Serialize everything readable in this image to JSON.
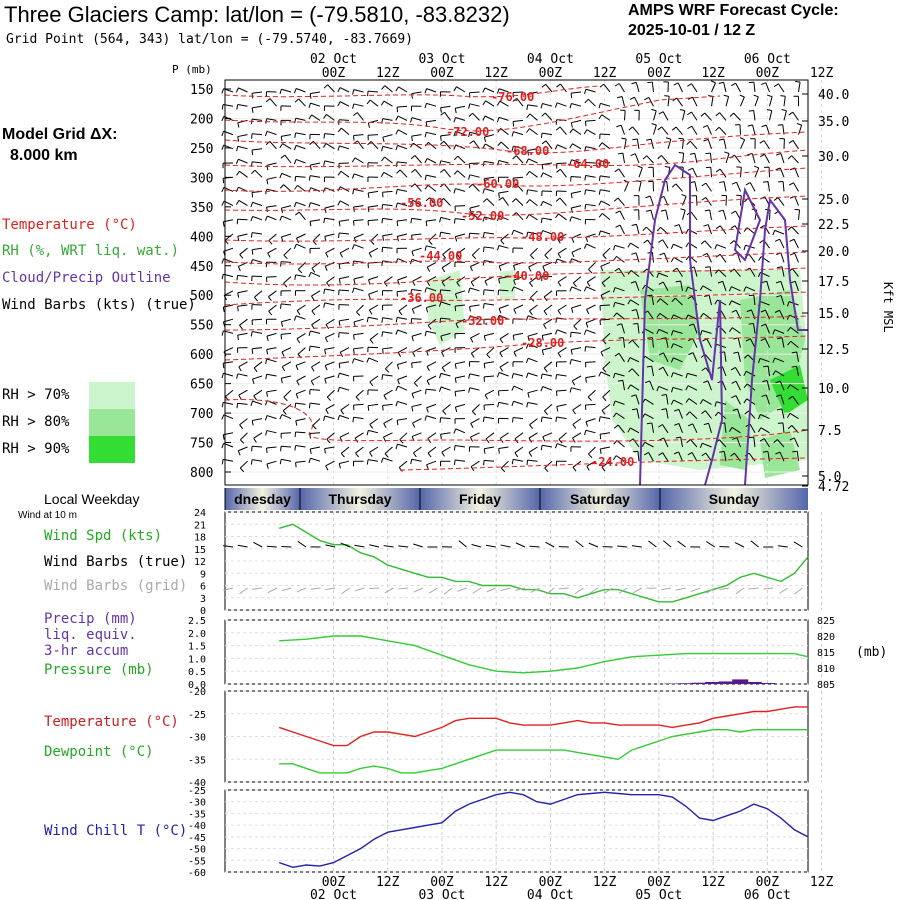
{
  "header": {
    "title": "Three Glaciers Camp:  lat/lon = (-79.5810, -83.8232)",
    "grid_point": "Grid Point (564, 343) lat/lon = (-79.5740, -83.7669)",
    "cycle_label": "AMPS WRF Forecast Cycle:",
    "cycle_value": "2025-10-01 / 12  Z"
  },
  "model_grid": {
    "label": "Model Grid ΔX:",
    "value": "8.000 km"
  },
  "legend": {
    "temperature": "Temperature (°C)",
    "rh": "RH (%, WRT liq. wat.)",
    "cloud": "Cloud/Precip Outline",
    "wind": "Wind Barbs (kts) (true)",
    "rh70": "RH > 70%",
    "rh80": "RH > 80%",
    "rh90": "RH > 90%"
  },
  "colors": {
    "temperature": "#e02020",
    "rh": "#33bb33",
    "cloud": "#6633aa",
    "rh70": "#ccf5cc",
    "rh80": "#99e699",
    "rh90": "#33dd33",
    "wind_chill": "#2222aa",
    "dewpoint": "#33cc33",
    "pressure": "#33cc33",
    "precip": "#551a8b",
    "wind_grid": "#aaaaaa"
  },
  "time_axis": {
    "hour_ticks": [
      "00Z",
      "12Z",
      "00Z",
      "12Z",
      "00Z",
      "12Z",
      "00Z",
      "12Z",
      "00Z",
      "12Z"
    ],
    "date_ticks": [
      "02 Oct",
      "03 Oct",
      "04 Oct",
      "05 Oct",
      "06 Oct"
    ]
  },
  "weekday": {
    "label": "Local Weekday",
    "days": [
      "dnesday",
      "Thursday",
      "Friday",
      "Saturday",
      "Sunday"
    ],
    "wind_note": "Wind at 10 m"
  },
  "cross_section": {
    "p_label": "P (mb)",
    "right_label": "Kft MSL",
    "pressure_ticks": [
      "150",
      "200",
      "250",
      "300",
      "350",
      "400",
      "450",
      "500",
      "550",
      "600",
      "650",
      "700",
      "750",
      "800"
    ],
    "height_ticks": [
      "40.0",
      "35.0",
      "30.0",
      "25.0",
      "22.5",
      "20.0",
      "17.5",
      "15.0",
      "12.5",
      "10.0",
      "7.5",
      "5.0",
      "4.72"
    ],
    "contour_labels": [
      "-76.00",
      "-72.00",
      "-68.00",
      "-64.00",
      "-60.00",
      "-56.00",
      "-52.00",
      "-48.00",
      "-44.00",
      "-40.00",
      "-36.00",
      "-32.00",
      "-28.00",
      "-24.00"
    ]
  },
  "panel_wind": {
    "labels": [
      "Wind Spd (kts)",
      "Wind Barbs (true)",
      "Wind Barbs (grid)"
    ],
    "y_ticks": [
      "24",
      "21",
      "18",
      "15",
      "12",
      "9",
      "6",
      "3",
      "0"
    ]
  },
  "panel_precip": {
    "labels": [
      "Precip (mm)",
      "liq. equiv.",
      "3-hr accum",
      "Pressure (mb)"
    ],
    "left_ticks": [
      "2.5",
      "2.0",
      "1.5",
      "1.0",
      "0.5",
      "0.0"
    ],
    "right_ticks": [
      "825",
      "820",
      "815",
      "810",
      "805"
    ],
    "unit": "(mb)"
  },
  "panel_temp": {
    "labels": [
      "Temperature (°C)",
      "Dewpoint (°C)"
    ],
    "y_ticks": [
      "-20",
      "-25",
      "-30",
      "-35",
      "-40"
    ]
  },
  "panel_chill": {
    "label": "Wind Chill T (°C)",
    "y_ticks": [
      "-25",
      "-30",
      "-35",
      "-40",
      "-45",
      "-50",
      "-55",
      "-60"
    ]
  },
  "chart_data": [
    {
      "type": "line",
      "title": "Wind Spd (kts)",
      "x": [
        0,
        3,
        6,
        9,
        12,
        15,
        18,
        21,
        24,
        27,
        30,
        33,
        36,
        39,
        42,
        45,
        48,
        51,
        54,
        57,
        60,
        63,
        66,
        69,
        72,
        75,
        78,
        81,
        84,
        87,
        90,
        93,
        96,
        99,
        102,
        105,
        108,
        111,
        114,
        117
      ],
      "series": [
        {
          "name": "Wind Spd (kts)",
          "values": [
            20,
            21,
            19,
            17,
            16,
            16,
            14,
            13,
            11,
            10,
            9,
            8,
            8,
            7,
            7,
            6,
            6,
            6,
            5,
            5,
            4,
            4,
            3,
            4,
            5,
            5,
            4,
            3,
            2,
            2,
            3,
            4,
            5,
            6,
            8,
            9,
            8,
            7,
            9,
            13
          ]
        }
      ],
      "ylim": [
        0,
        24
      ]
    },
    {
      "type": "line",
      "title": "Pressure (mb)",
      "x": [
        0,
        6,
        12,
        18,
        24,
        30,
        36,
        42,
        48,
        54,
        60,
        66,
        72,
        78,
        84,
        90,
        96,
        102,
        108,
        114,
        117
      ],
      "series": [
        {
          "name": "Pressure (mb)",
          "values": [
            818.5,
            819,
            820,
            820,
            818.5,
            817,
            814,
            811,
            809,
            808.5,
            809,
            810,
            812,
            813.5,
            814,
            814.5,
            814.5,
            814.5,
            814.5,
            814.5,
            813.5
          ]
        }
      ],
      "ylim": [
        805,
        825
      ]
    },
    {
      "type": "bar",
      "title": "Precip (mm) liq. equiv. 3-hr accum",
      "x": [
        87,
        90,
        93,
        96,
        99,
        102,
        105,
        108
      ],
      "values": [
        0.02,
        0.03,
        0.05,
        0.08,
        0.1,
        0.18,
        0.08,
        0.04
      ],
      "ylim": [
        0,
        2.5
      ]
    },
    {
      "type": "line",
      "x": [
        0,
        3,
        6,
        9,
        12,
        15,
        18,
        21,
        24,
        27,
        30,
        33,
        36,
        39,
        42,
        45,
        48,
        51,
        54,
        57,
        60,
        63,
        66,
        69,
        72,
        75,
        78,
        81,
        84,
        87,
        90,
        93,
        96,
        99,
        102,
        105,
        108,
        111,
        114,
        117
      ],
      "series": [
        {
          "name": "Temperature (°C)",
          "values": [
            -28,
            -29,
            -30,
            -31,
            -32,
            -32,
            -30,
            -29,
            -29,
            -29.5,
            -30,
            -29,
            -28,
            -26.5,
            -26,
            -26,
            -26,
            -27,
            -27.5,
            -27.5,
            -27.5,
            -27,
            -26.5,
            -27,
            -27,
            -27.5,
            -27.5,
            -27.5,
            -27.5,
            -28,
            -27.5,
            -27,
            -26,
            -25.5,
            -25,
            -24.5,
            -24.5,
            -24,
            -23.5,
            -23.5
          ]
        },
        {
          "name": "Dewpoint (°C)",
          "values": [
            -36,
            -36,
            -37,
            -38,
            -38,
            -38,
            -37,
            -36.5,
            -37,
            -38,
            -38,
            -37.5,
            -37,
            -36,
            -35,
            -34,
            -33,
            -33,
            -33,
            -33,
            -33,
            -33,
            -33.5,
            -34,
            -34.5,
            -35,
            -33,
            -32,
            -31,
            -30,
            -29.5,
            -29,
            -28.5,
            -28.5,
            -29,
            -28.5,
            -28.5,
            -28.5,
            -28.5,
            -28.5
          ]
        }
      ],
      "ylim": [
        -40,
        -20
      ]
    },
    {
      "type": "line",
      "title": "Wind Chill T (°C)",
      "x": [
        0,
        3,
        6,
        9,
        12,
        15,
        18,
        21,
        24,
        27,
        30,
        33,
        36,
        39,
        42,
        45,
        48,
        51,
        54,
        57,
        60,
        63,
        66,
        69,
        72,
        75,
        78,
        81,
        84,
        87,
        90,
        93,
        96,
        99,
        102,
        105,
        108,
        111,
        114,
        117
      ],
      "series": [
        {
          "name": "Wind Chill T (°C)",
          "values": [
            -56,
            -58,
            -57,
            -57.5,
            -56,
            -53,
            -50,
            -46,
            -43,
            -42,
            -41,
            -40,
            -39,
            -34,
            -31,
            -29,
            -27,
            -26,
            -27,
            -30,
            -31,
            -29,
            -27,
            -26.5,
            -26,
            -26.5,
            -27,
            -27,
            -27,
            -28,
            -32,
            -37,
            -38,
            -36,
            -34,
            -31,
            -33,
            -37,
            -42,
            -45
          ]
        }
      ],
      "ylim": [
        -60,
        -25
      ]
    }
  ]
}
